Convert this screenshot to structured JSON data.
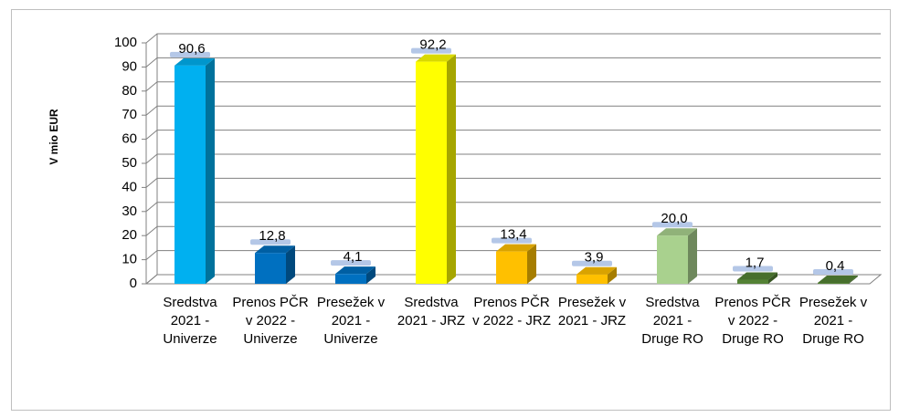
{
  "chart_data": {
    "type": "bar3d",
    "y_label": "V mio EUR",
    "categories": [
      "Sredstva 2021 - Univerze",
      "Prenos PČR v 2022 - Univerze",
      "Presežek v 2021 - Univerze",
      "Sredstva 2021 - JRZ",
      "Prenos PČR v 2022 - JRZ",
      "Presežek v 2021 - JRZ",
      "Sredstva 2021 - Druge RO",
      "Prenos PČR v 2022 - Druge RO",
      "Presežek v 2021 - Druge RO"
    ],
    "values": [
      90.6,
      12.8,
      4.1,
      92.2,
      13.4,
      3.9,
      20.0,
      1.7,
      0.4
    ],
    "value_labels": [
      "90,6",
      "12,8",
      "4,1",
      "92,2",
      "13,4",
      "3,9",
      "20,0",
      "1,7",
      "0,4"
    ],
    "colors": [
      "#00b0f0",
      "#0070c0",
      "#0070c0",
      "#ffff00",
      "#ffc000",
      "#ffc000",
      "#a9d18e",
      "#548235",
      "#548235"
    ],
    "ylim": [
      0,
      100
    ],
    "yticks": [
      0,
      10,
      20,
      30,
      40,
      50,
      60,
      70,
      80,
      90,
      100
    ],
    "grid": true
  }
}
